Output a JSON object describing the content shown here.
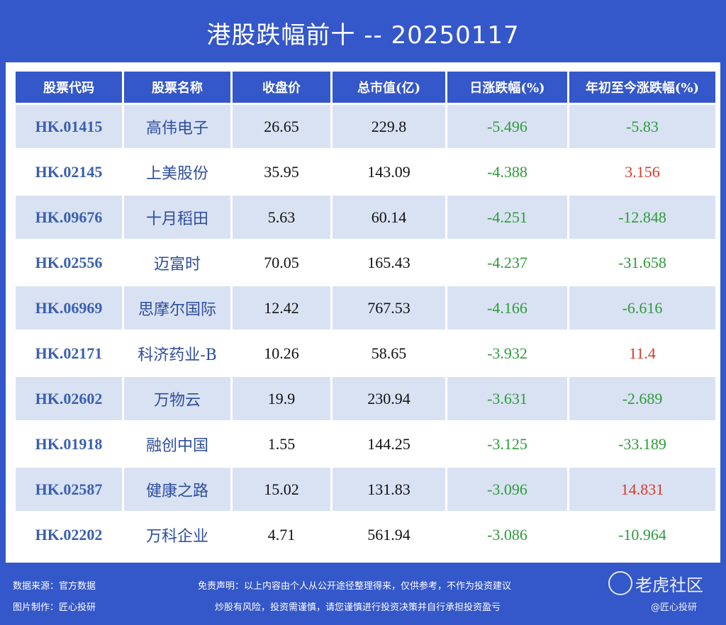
{
  "title": "港股跌幅前十 -- 20250117",
  "table": {
    "headers": [
      "股票代码",
      "股票名称",
      "收盘价",
      "总市值(亿)",
      "日涨跌幅(%)",
      "年初至今涨跌幅(%)"
    ],
    "rows": [
      {
        "code": "HK.01415",
        "name": "高伟电子",
        "close": "26.65",
        "mcap": "229.8",
        "day": "-5.496",
        "ytd": "-5.83"
      },
      {
        "code": "HK.02145",
        "name": "上美股份",
        "close": "35.95",
        "mcap": "143.09",
        "day": "-4.388",
        "ytd": "3.156"
      },
      {
        "code": "HK.09676",
        "name": "十月稻田",
        "close": "5.63",
        "mcap": "60.14",
        "day": "-4.251",
        "ytd": "-12.848"
      },
      {
        "code": "HK.02556",
        "name": "迈富时",
        "close": "70.05",
        "mcap": "165.43",
        "day": "-4.237",
        "ytd": "-31.658"
      },
      {
        "code": "HK.06969",
        "name": "思摩尔国际",
        "close": "12.42",
        "mcap": "767.53",
        "day": "-4.166",
        "ytd": "-6.616"
      },
      {
        "code": "HK.02171",
        "name": "科济药业-B",
        "close": "10.26",
        "mcap": "58.65",
        "day": "-3.932",
        "ytd": "11.4"
      },
      {
        "code": "HK.02602",
        "name": "万物云",
        "close": "19.9",
        "mcap": "230.94",
        "day": "-3.631",
        "ytd": "-2.689"
      },
      {
        "code": "HK.01918",
        "name": "融创中国",
        "close": "1.55",
        "mcap": "144.25",
        "day": "-3.125",
        "ytd": "-33.189"
      },
      {
        "code": "HK.02587",
        "name": "健康之路",
        "close": "15.02",
        "mcap": "131.83",
        "day": "-3.096",
        "ytd": "14.831"
      },
      {
        "code": "HK.02202",
        "name": "万科企业",
        "close": "4.71",
        "mcap": "561.94",
        "day": "-3.086",
        "ytd": "-10.964"
      }
    ]
  },
  "footer": {
    "source": "数据来源：官方数据",
    "maker": "图片制作：匠心投研",
    "disclaimer_1": "免责声明：以上内容由个人从公开途径整理得来，仅供参考，不作为投资建议",
    "disclaimer_2": "炒股有风险，投资需谨慎，请您谨慎进行投资决策并自行承担投资盈亏"
  },
  "watermark": {
    "brand": "老虎社区",
    "handle": "@匠心投研"
  },
  "colors": {
    "background": "#3457c9",
    "row_alt": "#d9e2f3",
    "negative": "#2e9b3a",
    "positive": "#d83a2a",
    "code": "#3a5fae"
  }
}
